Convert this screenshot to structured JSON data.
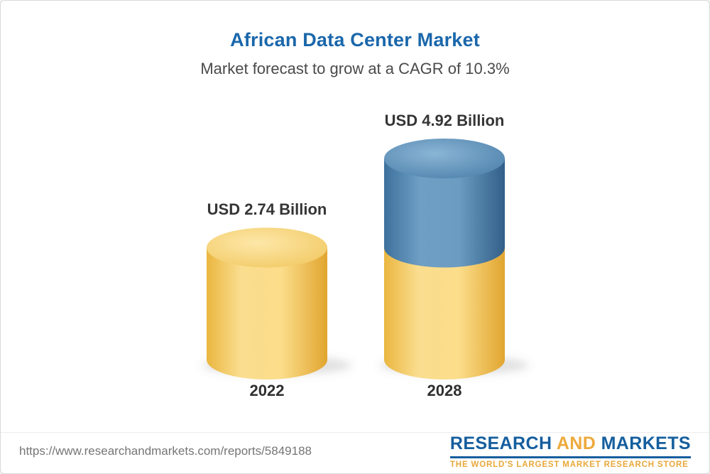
{
  "page": {
    "title": "African Data Center Market",
    "subtitle": "Market forecast to grow at a CAGR of 10.3%"
  },
  "chart_data": {
    "type": "bar",
    "variant": "3d-cylinder",
    "title": "African Data Center Market",
    "subtitle": "Market forecast to grow at a CAGR of 10.3%",
    "cagr_percent": 10.3,
    "unit": "USD Billion",
    "categories": [
      "2022",
      "2028"
    ],
    "ylim": [
      0,
      4.92
    ],
    "grid": false,
    "legend": "none",
    "bars": [
      {
        "category": "2022",
        "label": "USD 2.74 Billion",
        "value": 2.74,
        "segments": [
          {
            "value": 2.74,
            "color": "gold"
          }
        ]
      },
      {
        "category": "2028",
        "label": "USD 4.92 Billion",
        "value": 4.92,
        "segments": [
          {
            "value": 2.74,
            "color": "gold"
          },
          {
            "value": 2.18,
            "color": "blue"
          }
        ]
      }
    ],
    "colors": {
      "gold": "#f6cf6d",
      "blue": "#4b80a8"
    }
  },
  "footer": {
    "url": "https://www.researchandmarkets.com/reports/5849188",
    "logo": {
      "part1": "RESEARCH",
      "part2": "AND",
      "part3": "MARKETS",
      "tagline": "THE WORLD'S LARGEST MARKET RESEARCH STORE"
    }
  }
}
